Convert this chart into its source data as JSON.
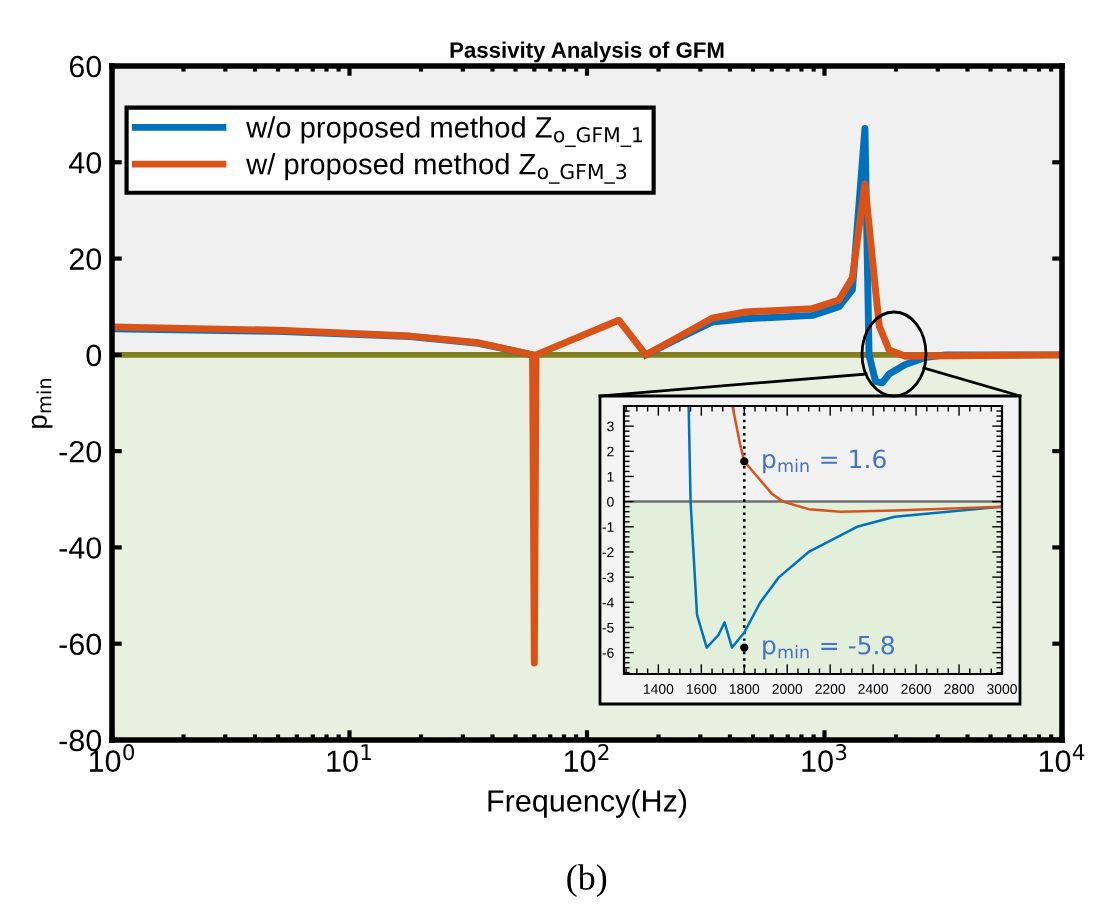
{
  "chart_data": [
    {
      "type": "line",
      "title": "Passivity Analysis of GFM",
      "xlabel": "Frequency(Hz)",
      "ylabel": "p$_{min}$",
      "log": "x",
      "legend": "top left",
      "xlim": [
        1,
        10000
      ],
      "ylim": [
        -80,
        60
      ],
      "xticks": [
        {
          "value": 1,
          "label": "10$^{0}$"
        },
        {
          "value": 10,
          "label": "10$^{1}$"
        },
        {
          "value": 100,
          "label": "10$^{2}$"
        },
        {
          "value": 1000,
          "label": "10$^{3}$"
        },
        {
          "value": 10000,
          "label": "10$^{4}$"
        }
      ],
      "yticks": [
        -80,
        -60,
        -40,
        -20,
        0,
        20,
        40,
        60
      ],
      "bands": [
        {
          "axis": "y",
          "from": 0,
          "to": 60,
          "color": "#f0f0f0"
        },
        {
          "axis": "y",
          "from": -80,
          "to": 0,
          "color": "#e9f0df"
        }
      ],
      "ref_lines": [
        {
          "axis": "y",
          "value": 0,
          "color": "#7f7f20",
          "line_style": "solid"
        }
      ],
      "series": [
        {
          "name": "w/o proposed method Z$_{o_GFM_1}$",
          "color": "#0072bd",
          "x": [
            1,
            5,
            18,
            35,
            59,
            60,
            61,
            136,
            177,
            245,
            336,
            465,
            890,
            1150,
            1310,
            1480,
            1540,
            1640,
            1750,
            1870,
            2190,
            2680,
            3240,
            10000
          ],
          "values": [
            5.4,
            4.9,
            3.8,
            2.4,
            0,
            null,
            0,
            null,
            0,
            3.5,
            6.8,
            7.5,
            8.2,
            10,
            13.5,
            47,
            0,
            -5.5,
            -5.8,
            -4,
            -2,
            -0.5,
            0,
            0
          ]
        },
        {
          "name": "w/ proposed method Z$_{o_GFM_3}$",
          "color": "#d95319",
          "x": [
            1,
            5,
            18,
            35,
            59,
            60,
            61,
            136,
            177,
            245,
            336,
            465,
            890,
            1150,
            1310,
            1480,
            1590,
            1700,
            1870,
            2190,
            3240,
            10000
          ],
          "values": [
            5.8,
            5.1,
            3.9,
            2.5,
            0,
            -64,
            0,
            7.2,
            0,
            3.8,
            7.6,
            8.9,
            9.6,
            11.4,
            16,
            35.5,
            20,
            6,
            1,
            -0.3,
            -0.2,
            0
          ]
        }
      ],
      "annotations": [
        "(b)"
      ]
    },
    {
      "type": "line",
      "xlim": [
        1240,
        3000
      ],
      "ylim": [
        -6.85,
        3.8
      ],
      "xticks": [
        1400,
        1600,
        1800,
        2000,
        2200,
        2400,
        2600,
        2800,
        3000
      ],
      "yticks": [
        -6,
        -5,
        -4,
        -3,
        -2,
        -1,
        0,
        1,
        2,
        3
      ],
      "bands": [
        {
          "axis": "y",
          "from": 0,
          "to": 3.8,
          "color": "#f2f2f2"
        },
        {
          "axis": "y",
          "from": -6.85,
          "to": 0,
          "color": "#e2efda"
        }
      ],
      "ref_lines": [
        {
          "axis": "y",
          "value": 0,
          "color": "#707070",
          "line_style": "solid"
        },
        {
          "axis": "x",
          "value": 1800,
          "color": "#000000",
          "line_style": "dotted"
        }
      ],
      "series": [
        {
          "color": "#0072bd",
          "x": [
            1541,
            1550,
            1580,
            1625,
            1680,
            1708,
            1743,
            1800,
            1875,
            1962,
            2100,
            2325,
            2500,
            3000
          ],
          "values": [
            3.8,
            0,
            -4.5,
            -5.8,
            -5.3,
            -4.8,
            -5.8,
            -5.2,
            -4,
            -3,
            -2,
            -1,
            -0.6,
            -0.2
          ]
        },
        {
          "color": "#d95319",
          "x": [
            1745,
            1780,
            1800,
            1860,
            1930,
            1980,
            2100,
            2250,
            2500,
            3000
          ],
          "values": [
            3.8,
            2.3,
            1.6,
            1,
            0.3,
            0,
            -0.3,
            -0.4,
            -0.35,
            -0.2
          ]
        }
      ],
      "annotations": [
        {
          "text": "p$_{min}$ = 1.6",
          "x": 1800,
          "y": 1.6
        },
        {
          "text": "p$_{min}$ = -5.8",
          "x": 1800,
          "y": -5.8
        }
      ]
    }
  ]
}
